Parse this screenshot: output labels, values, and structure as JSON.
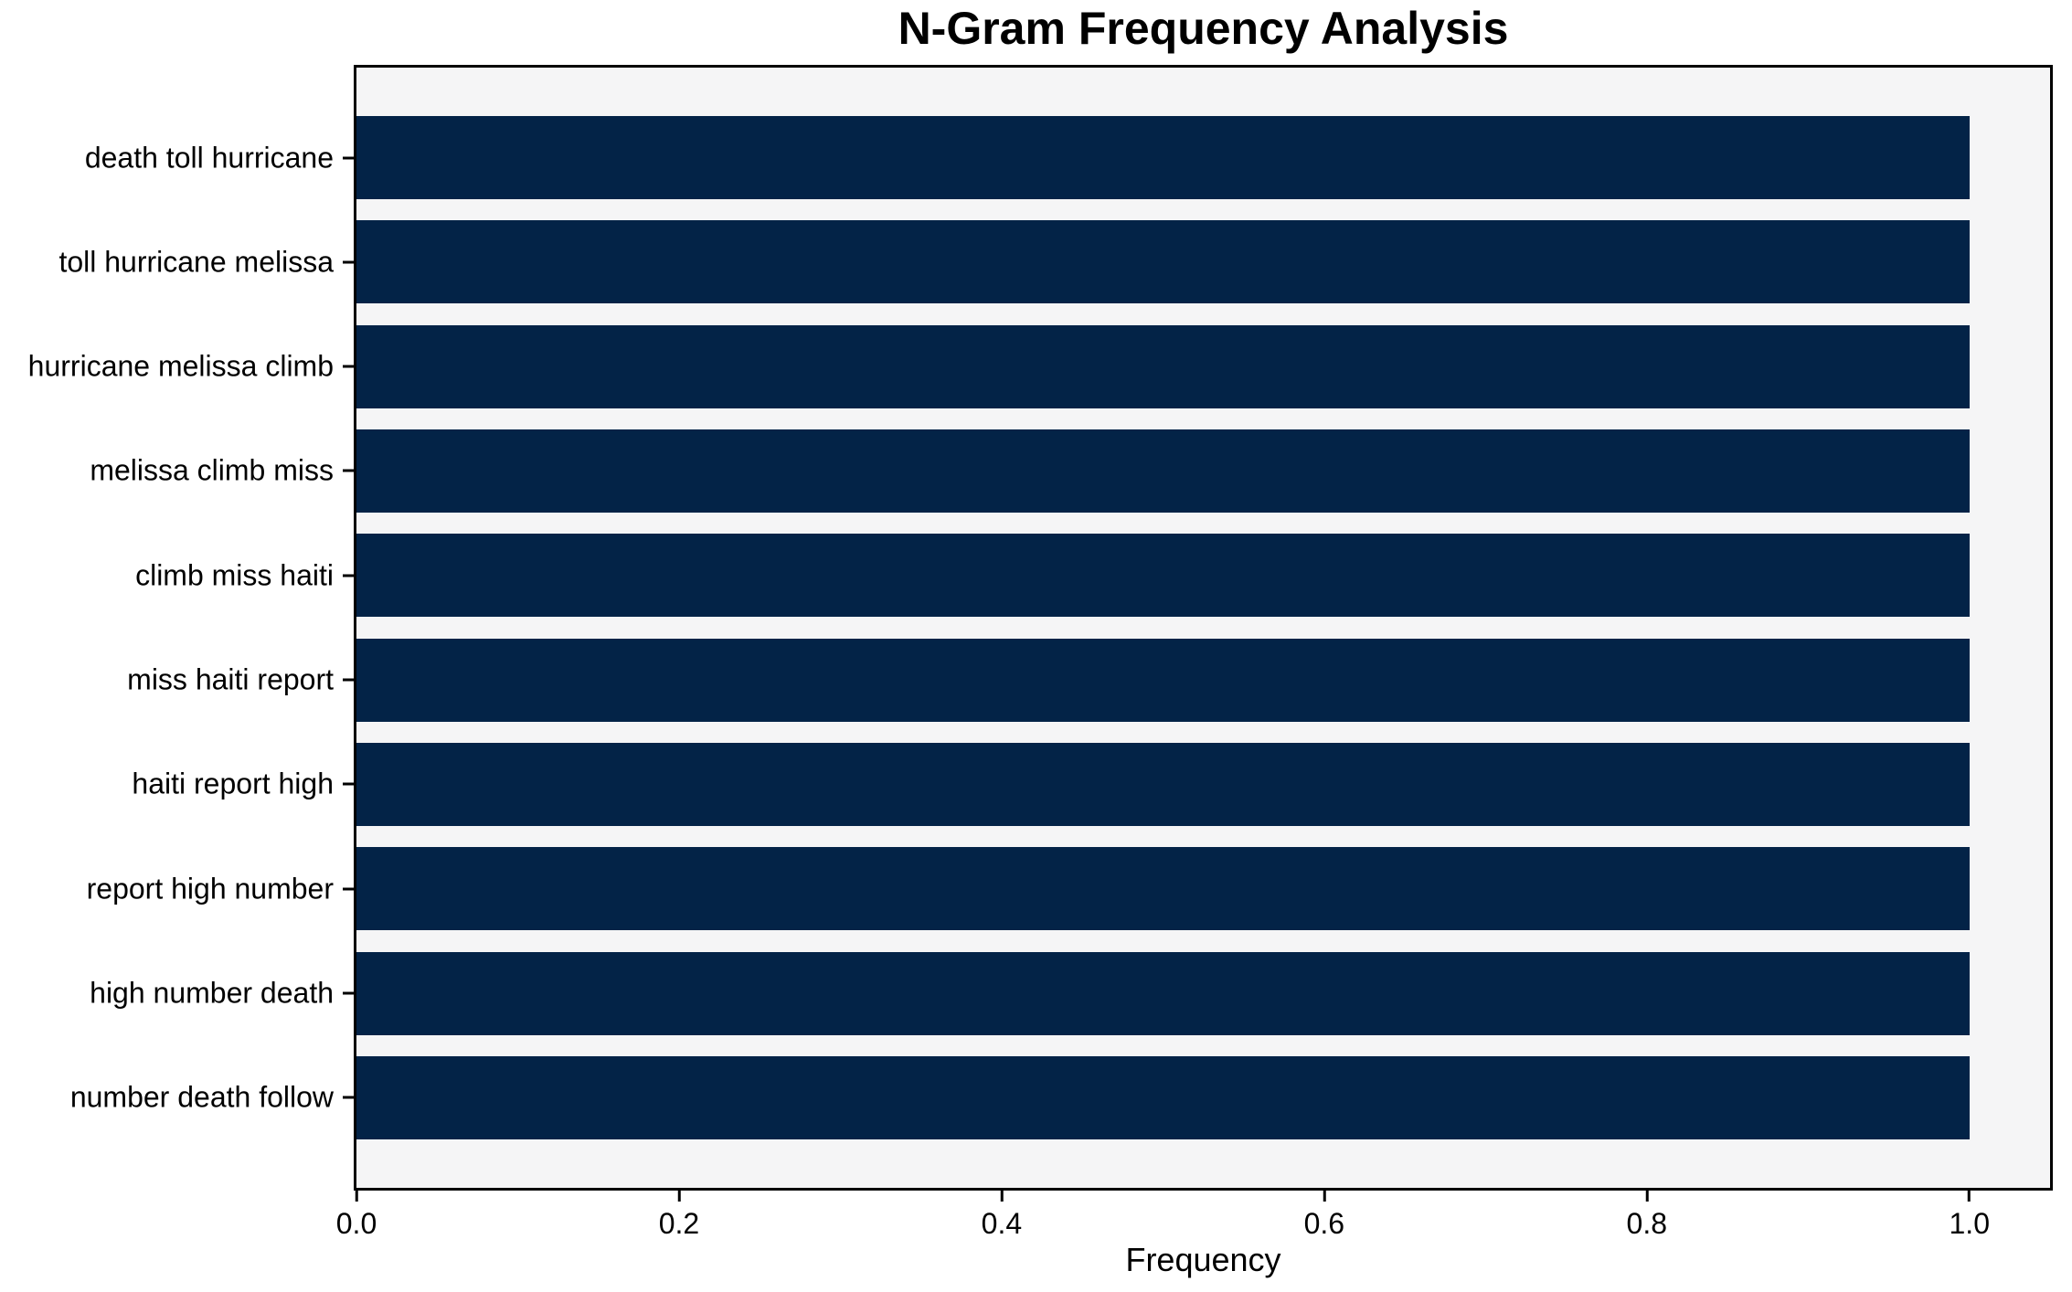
{
  "chart_data": {
    "type": "bar",
    "orientation": "horizontal",
    "title": "N-Gram Frequency Analysis",
    "xlabel": "Frequency",
    "ylabel": "",
    "categories": [
      "death toll hurricane",
      "toll hurricane melissa",
      "hurricane melissa climb",
      "melissa climb miss",
      "climb miss haiti",
      "miss haiti report",
      "haiti report high",
      "report high number",
      "high number death",
      "number death follow"
    ],
    "values": [
      1.0,
      1.0,
      1.0,
      1.0,
      1.0,
      1.0,
      1.0,
      1.0,
      1.0,
      1.0
    ],
    "xlim": [
      0,
      1.05
    ],
    "xticks": [
      0.0,
      0.2,
      0.4,
      0.6,
      0.8,
      1.0
    ],
    "xtick_labels": [
      "0.0",
      "0.2",
      "0.4",
      "0.6",
      "0.8",
      "1.0"
    ],
    "grid": false,
    "legend": "none",
    "colors": {
      "bar": "#032347",
      "plot_background": "#f5f5f6",
      "figure_background": "#ffffff",
      "spine": "#000000",
      "text": "#000000"
    }
  }
}
